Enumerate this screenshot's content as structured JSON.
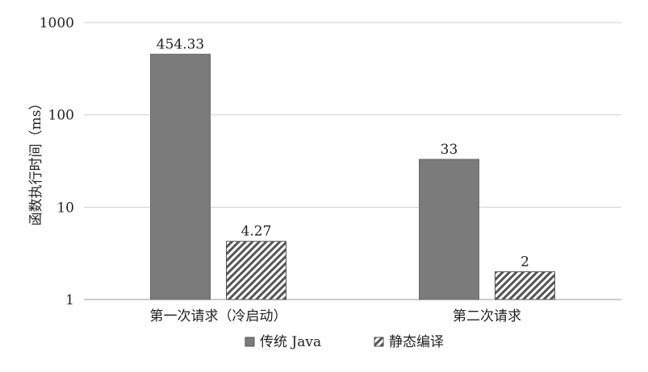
{
  "chart_data": {
    "type": "bar",
    "title": "",
    "xlabel": "",
    "ylabel": "函数执行时间（ms）",
    "yscale": "log",
    "ylim": [
      1,
      1000
    ],
    "yticks": [
      1,
      10,
      100,
      1000
    ],
    "ytick_labels": [
      "1",
      "10",
      "100",
      "1000"
    ],
    "grid": true,
    "legend_position": "bottom",
    "categories": [
      "第一次请求（冷启动）",
      "第二次请求"
    ],
    "series": [
      {
        "name": "传统 Java",
        "values": [
          454.33,
          33
        ],
        "labels": [
          "454.33",
          "33"
        ],
        "color": "#7b7b7b",
        "pattern": "solid"
      },
      {
        "name": "静态编译",
        "values": [
          4.27,
          2
        ],
        "labels": [
          "4.27",
          "2"
        ],
        "color": "#555555",
        "pattern": "hatch"
      }
    ]
  }
}
